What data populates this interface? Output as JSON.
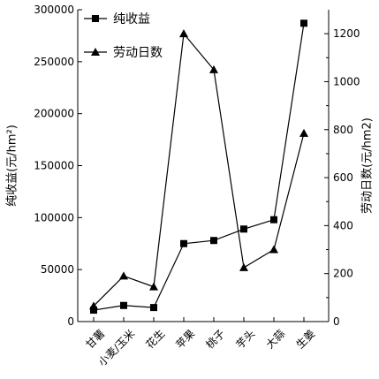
{
  "chart_data": {
    "type": "line",
    "categories": [
      "甘薯",
      "小麦/玉米",
      "花生",
      "苹果",
      "桃子",
      "芋头",
      "大蒜",
      "生姜"
    ],
    "series": [
      {
        "name": "纯收益",
        "axis": "left",
        "marker": "square",
        "values": [
          11000,
          15500,
          13500,
          75000,
          78000,
          89000,
          98000,
          287000
        ]
      },
      {
        "name": "劳动日数",
        "axis": "right",
        "marker": "triangle",
        "values": [
          65,
          190,
          145,
          1200,
          1050,
          225,
          300,
          785
        ]
      }
    ],
    "ylabel_left": "纯收益(元/hm²)",
    "ylabel_right": "劳动日数(元/hm2)",
    "ylim_left": [
      0,
      300000
    ],
    "ylim_right": [
      0,
      1300
    ],
    "yticks_left": [
      "0",
      "50000",
      "100000",
      "150000",
      "200000",
      "250000",
      "300000"
    ],
    "yticks_right": [
      "0",
      "200",
      "400",
      "600",
      "800",
      "1000",
      "1200"
    ],
    "legend_position": "top-left",
    "grid": false,
    "line_color": "#000000"
  }
}
